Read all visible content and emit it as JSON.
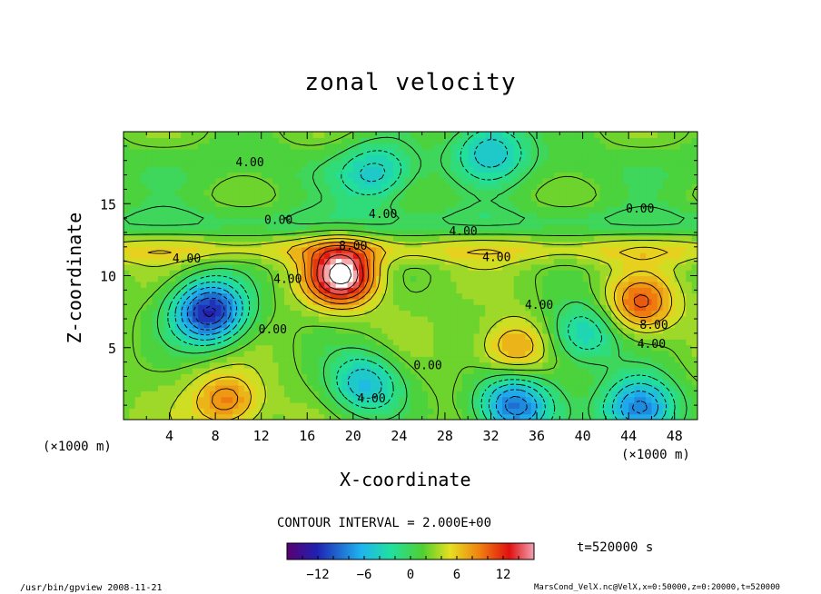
{
  "chart_data": {
    "type": "heatmap",
    "title": "zonal velocity",
    "xlabel": "X-coordinate",
    "ylabel": "Z-coordinate",
    "x_unit": "(×1000 m)",
    "y_unit": "(×1000 m)",
    "x_ticks": [
      4,
      8,
      12,
      16,
      20,
      24,
      28,
      32,
      36,
      40,
      44,
      48
    ],
    "y_ticks": [
      5,
      10,
      15
    ],
    "xlim": [
      0,
      50
    ],
    "ylim": [
      0,
      20
    ],
    "contour_interval_text": "CONTOUR INTERVAL = 2.000E+00",
    "contour_labels": [
      {
        "text": "4.00",
        "x": 11,
        "y": 17.6
      },
      {
        "text": "0.00",
        "x": 13.5,
        "y": 13.6
      },
      {
        "text": "4.00",
        "x": 5.5,
        "y": 10.9
      },
      {
        "text": "8.00",
        "x": 20,
        "y": 11.8
      },
      {
        "text": "4.00",
        "x": 22.6,
        "y": 14.0
      },
      {
        "text": "4.00",
        "x": 29.6,
        "y": 12.8
      },
      {
        "text": "4.00",
        "x": 32.5,
        "y": 11.0
      },
      {
        "text": "4.00",
        "x": 14.3,
        "y": 9.5
      },
      {
        "text": "0.00",
        "x": 13.0,
        "y": 6.0
      },
      {
        "text": "0.00",
        "x": 26.5,
        "y": 3.5
      },
      {
        "text": "4.00",
        "x": 36.2,
        "y": 7.7
      },
      {
        "text": "0.00",
        "x": 45.0,
        "y": 14.4
      },
      {
        "text": "8.00",
        "x": 46.2,
        "y": 6.3
      },
      {
        "text": "4.00",
        "x": 46.0,
        "y": 5.0
      },
      {
        "text": "4.00",
        "x": 21.6,
        "y": 1.2
      }
    ],
    "features": [
      {
        "name": "max",
        "x": 19,
        "y": 10,
        "value": 16
      },
      {
        "name": "max",
        "x": 45,
        "y": 8,
        "value": 10
      },
      {
        "name": "max",
        "x": 34,
        "y": 5,
        "value": 8
      },
      {
        "name": "max",
        "x": 9,
        "y": 1.3,
        "value": 9
      },
      {
        "name": "min",
        "x": 7.5,
        "y": 7.5,
        "value": -13
      },
      {
        "name": "min",
        "x": 34,
        "y": 1,
        "value": -10
      },
      {
        "name": "min",
        "x": 45,
        "y": 0.8,
        "value": -10
      },
      {
        "name": "min",
        "x": 21,
        "y": 2.5,
        "value": -6
      },
      {
        "name": "min",
        "x": 22,
        "y": 17,
        "value": -4
      },
      {
        "name": "min",
        "x": 32,
        "y": 19,
        "value": -5
      },
      {
        "name": "min",
        "x": 40,
        "y": 6,
        "value": -5
      }
    ],
    "colorbar": {
      "vmin": -16,
      "vmax": 16,
      "tick_labels": [
        "−12",
        "−6",
        "0",
        "6",
        "12"
      ],
      "tick_values": [
        -12,
        -6,
        0,
        6,
        12
      ]
    }
  },
  "time_label": "t=520000 s",
  "footer_left": "/usr/bin/gpview   2008-11-21",
  "footer_right": "MarsCond_VelX.nc@VelX,x=0:50000,z=0:20000,t=520000"
}
